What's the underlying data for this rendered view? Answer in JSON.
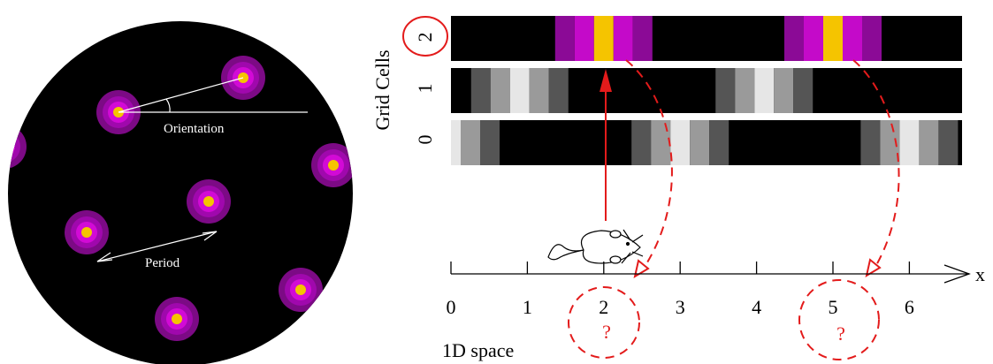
{
  "left_panel": {
    "orientation_label": "Orientation",
    "period_label": "Period",
    "field_colors": [
      "#7c0a85",
      "#a008ad",
      "#d20ad6",
      "#f5c400"
    ],
    "fields": [
      {
        "id": "field-1"
      },
      {
        "id": "field-2"
      },
      {
        "id": "field-3"
      },
      {
        "id": "field-4"
      },
      {
        "id": "field-5"
      },
      {
        "id": "field-6"
      },
      {
        "id": "field-7"
      },
      {
        "id": "field-8"
      }
    ]
  },
  "right_panel": {
    "y_axis_label": "Grid Cells",
    "row_labels": [
      "2",
      "1",
      "0"
    ],
    "rows": [
      {
        "label": "2",
        "palette": "magenta",
        "peaks": [
          2.0,
          5.0
        ]
      },
      {
        "label": "1",
        "palette": "gray",
        "peaks": [
          0.9,
          4.1
        ]
      },
      {
        "label": "0",
        "palette": "gray",
        "peaks": [
          0.0,
          3.0,
          6.0
        ]
      }
    ],
    "magenta_shades": [
      "#8b0a96",
      "#c40ac9",
      "#f5c400"
    ],
    "gray_shades": [
      "#555555",
      "#9a9a9a",
      "#e6e6e6"
    ],
    "axis": {
      "label": "x",
      "ticks": [
        "0",
        "1",
        "2",
        "3",
        "4",
        "5",
        "6"
      ],
      "space_label": "1D space"
    },
    "question_marks": [
      "?",
      "?"
    ],
    "accent_color": "#e31b1b"
  }
}
